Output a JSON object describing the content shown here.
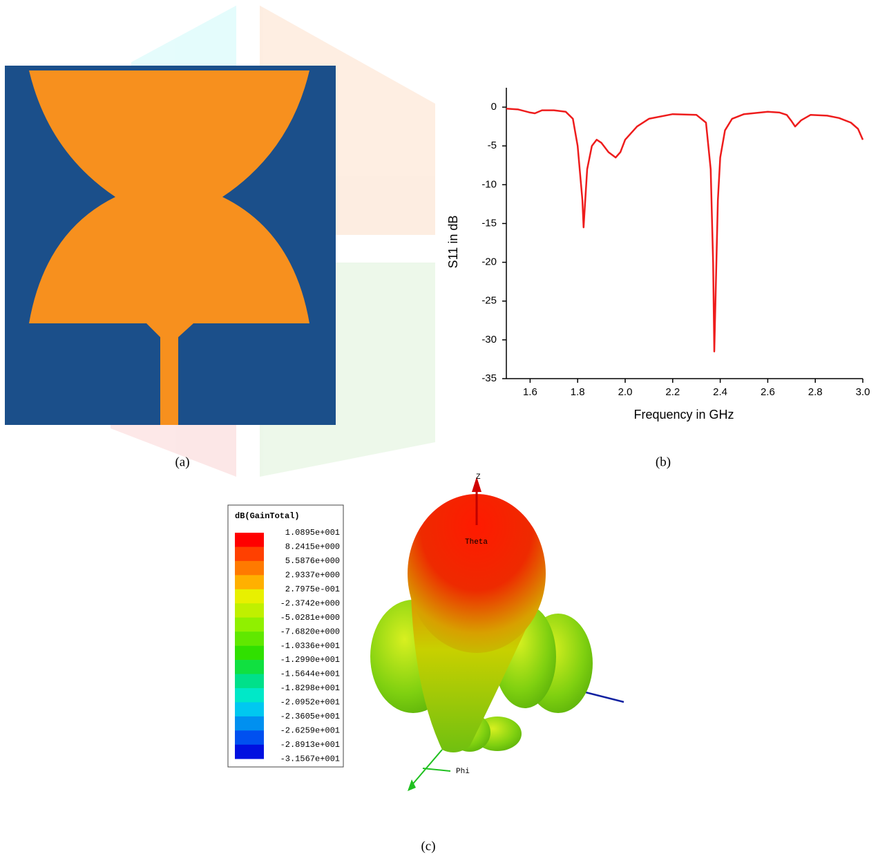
{
  "chart_data": {
    "type": "line",
    "xlabel": "Frequency in GHz",
    "ylabel": "S11 in dB",
    "color": "#ee1c1c",
    "x": [
      1.5,
      1.55,
      1.6,
      1.62,
      1.65,
      1.7,
      1.75,
      1.78,
      1.8,
      1.82,
      1.825,
      1.83,
      1.84,
      1.86,
      1.88,
      1.9,
      1.93,
      1.96,
      1.98,
      2.0,
      2.05,
      2.1,
      2.2,
      2.3,
      2.34,
      2.36,
      2.37,
      2.375,
      2.38,
      2.39,
      2.4,
      2.42,
      2.45,
      2.5,
      2.6,
      2.65,
      2.68,
      2.7,
      2.715,
      2.74,
      2.78,
      2.85,
      2.9,
      2.95,
      2.98,
      3.0
    ],
    "values": [
      -0.2,
      -0.3,
      -0.7,
      -0.8,
      -0.4,
      -0.4,
      -0.6,
      -1.5,
      -5,
      -12,
      -15.5,
      -13,
      -8,
      -5,
      -4.2,
      -4.6,
      -5.8,
      -6.5,
      -5.8,
      -4.2,
      -2.5,
      -1.5,
      -0.9,
      -1.0,
      -2,
      -8,
      -20,
      -31.5,
      -25,
      -12,
      -6.5,
      -3,
      -1.5,
      -0.9,
      -0.6,
      -0.7,
      -1,
      -1.8,
      -2.5,
      -1.7,
      -1.0,
      -1.1,
      -1.4,
      -2,
      -2.8,
      -4.2
    ],
    "xlim": [
      1.5,
      3.0
    ],
    "xticks": [
      1.6,
      1.8,
      {
        "value": 2,
        "label": "2.0"
      },
      2.2,
      2.4,
      2.6,
      2.8,
      {
        "value": 3,
        "label": "3.0"
      }
    ],
    "ylim": [
      -35,
      2.5
    ],
    "yticks": [
      -35,
      -30,
      -25,
      -20,
      -15,
      -10,
      -5,
      0
    ]
  },
  "captions": [
    "(a)",
    "(b)",
    "(c)"
  ],
  "gain_legend": {
    "title": "dB(GainTotal)",
    "ticks": [
      {
        "value": 10.895,
        "label": "1.0895e+001"
      },
      {
        "value": 8.2415,
        "label": "8.2415e+000"
      },
      {
        "value": 5.5876,
        "label": "5.5876e+000"
      },
      {
        "value": 2.9337,
        "label": "2.9337e+000"
      },
      {
        "value": 0.27975,
        "label": "2.7975e-001"
      },
      {
        "value": -2.3742,
        "label": "-2.3742e+000"
      },
      {
        "value": -5.0281,
        "label": "-5.0281e+000"
      },
      {
        "value": -7.682,
        "label": "-7.6820e+000"
      },
      {
        "value": -10.336,
        "label": "-1.0336e+001"
      },
      {
        "value": -12.99,
        "label": "-1.2990e+001"
      },
      {
        "value": -15.644,
        "label": "-1.5644e+001"
      },
      {
        "value": -18.298,
        "label": "-1.8298e+001"
      },
      {
        "value": -20.952,
        "label": "-2.0952e+001"
      },
      {
        "value": -23.605,
        "label": "-2.3605e+001"
      },
      {
        "value": -26.259,
        "label": "-2.6259e+001"
      },
      {
        "value": -28.913,
        "label": "-2.8913e+001"
      },
      {
        "value": -31.567,
        "label": "-3.1567e+001"
      }
    ],
    "colors": [
      "#ff0000",
      "#ff4000",
      "#ff7a00",
      "#ffb000",
      "#e8f000",
      "#c0f000",
      "#90f000",
      "#60e800",
      "#30e000",
      "#10e040",
      "#00e08a",
      "#00e8c8",
      "#00c8f0",
      "#0090f0",
      "#0050f0",
      "#0010e0"
    ]
  },
  "pattern_axes": {
    "z": "Z",
    "theta": "Theta",
    "phi": "Phi"
  }
}
